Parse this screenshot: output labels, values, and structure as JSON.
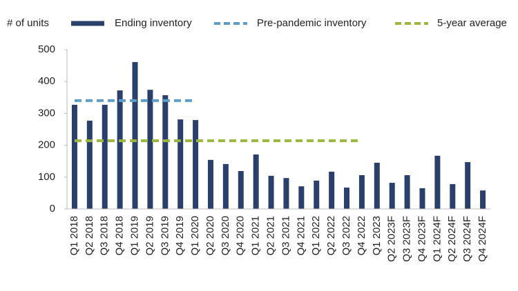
{
  "chart_data": {
    "type": "bar",
    "y_label": "# of units",
    "categories": [
      "Q1 2018",
      "Q2 2018",
      "Q3 2018",
      "Q4 2018",
      "Q1 2019",
      "Q2 2019",
      "Q3 2019",
      "Q4 2019",
      "Q1 2020",
      "Q2 2020",
      "Q3 2020",
      "Q4 2020",
      "Q1 2021",
      "Q2 2021",
      "Q3 2021",
      "Q4 2021",
      "Q1 2022",
      "Q2 2022",
      "Q3 2022",
      "Q4 2022",
      "Q1 2023",
      "Q2 2023F",
      "Q3 2023F",
      "Q4 2023F",
      "Q1 2024F",
      "Q2 2024F",
      "Q3 2024F",
      "Q4 2024F"
    ],
    "series": [
      {
        "name": "Ending inventory",
        "type": "bar",
        "color": "#2a3f6b",
        "values": [
          327,
          277,
          327,
          372,
          461,
          374,
          357,
          281,
          279,
          154,
          141,
          119,
          171,
          104,
          97,
          71,
          89,
          117,
          67,
          106,
          145,
          82,
          106,
          65,
          167,
          78,
          147,
          58
        ]
      },
      {
        "name": "Pre-pandemic inventory",
        "type": "line",
        "color": "#5b9fc9",
        "values": [
          340,
          340,
          340,
          340,
          340,
          340,
          340,
          340,
          340,
          null,
          null,
          null,
          null,
          null,
          null,
          null,
          null,
          null,
          null,
          null,
          null,
          null,
          null,
          null,
          null,
          null,
          null,
          null
        ]
      },
      {
        "name": "5-year average",
        "type": "line",
        "color": "#9bb73f",
        "values": [
          214,
          214,
          214,
          214,
          214,
          214,
          214,
          214,
          214,
          214,
          214,
          214,
          214,
          214,
          214,
          214,
          214,
          214,
          214,
          214,
          null,
          null,
          null,
          null,
          null,
          null,
          null,
          null
        ]
      }
    ],
    "ylim": [
      0,
      500
    ],
    "yticks": [
      0,
      100,
      200,
      300,
      400,
      500
    ]
  }
}
